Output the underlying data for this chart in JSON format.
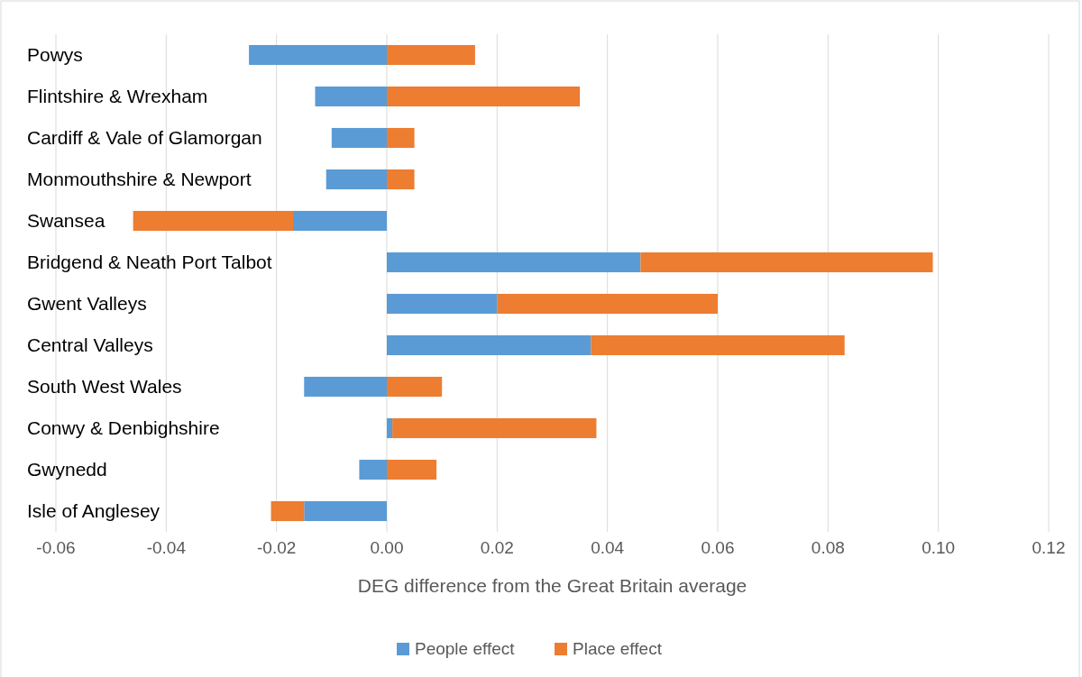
{
  "chart_data": {
    "type": "bar",
    "orientation": "horizontal",
    "stacked": true,
    "xlabel": "DEG difference from the Great Britain average",
    "categories": [
      "Powys",
      "Flintshire & Wrexham",
      "Cardiff & Vale of Glamorgan",
      "Monmouthshire & Newport",
      "Swansea",
      "Bridgend & Neath Port Talbot",
      "Gwent Valleys",
      "Central Valleys",
      "South West Wales",
      "Conwy & Denbighshire",
      "Gwynedd",
      "Isle of Anglesey"
    ],
    "series": [
      {
        "name": "People effect",
        "color": "#5b9bd5",
        "values": [
          -0.025,
          -0.013,
          -0.01,
          -0.011,
          -0.017,
          0.046,
          0.02,
          0.037,
          -0.015,
          0.001,
          -0.005,
          -0.015
        ]
      },
      {
        "name": "Place effect",
        "color": "#ed7d31",
        "values": [
          0.016,
          0.035,
          0.005,
          0.005,
          -0.029,
          0.053,
          0.04,
          0.046,
          0.01,
          0.037,
          0.009,
          -0.006
        ]
      }
    ],
    "xlim": [
      -0.06,
      0.12
    ],
    "xticks": [
      {
        "value": -0.06,
        "label": "-0.06"
      },
      {
        "value": -0.04,
        "label": "-0.04"
      },
      {
        "value": -0.02,
        "label": "-0.02"
      },
      {
        "value": 0,
        "label": "0.00"
      },
      {
        "value": 0.02,
        "label": "0.02"
      },
      {
        "value": 0.04,
        "label": "0.04"
      },
      {
        "value": 0.06,
        "label": "0.06"
      },
      {
        "value": 0.08,
        "label": "0.08"
      },
      {
        "value": 0.1,
        "label": "0.10"
      },
      {
        "value": 0.12,
        "label": "0.12"
      }
    ],
    "grid": "x",
    "legend": "bottom"
  }
}
